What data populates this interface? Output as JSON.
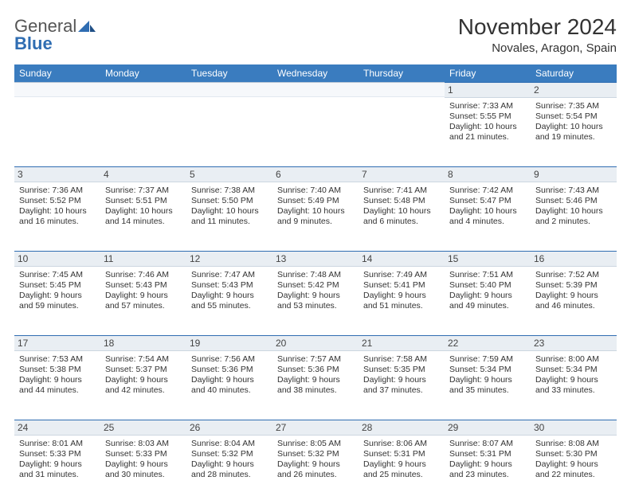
{
  "logo": {
    "word1": "General",
    "word2": "Blue"
  },
  "title": "November 2024",
  "location": "Novales, Aragon, Spain",
  "daysOfWeek": [
    "Sunday",
    "Monday",
    "Tuesday",
    "Wednesday",
    "Thursday",
    "Friday",
    "Saturday"
  ],
  "colors": {
    "header_bg": "#3a7cbf",
    "daynum_bg": "#e9eef3",
    "daynum_border_top": "#2f6db2"
  },
  "weeks": [
    [
      null,
      null,
      null,
      null,
      null,
      {
        "n": "1",
        "sunrise": "Sunrise: 7:33 AM",
        "sunset": "Sunset: 5:55 PM",
        "d1": "Daylight: 10 hours",
        "d2": "and 21 minutes."
      },
      {
        "n": "2",
        "sunrise": "Sunrise: 7:35 AM",
        "sunset": "Sunset: 5:54 PM",
        "d1": "Daylight: 10 hours",
        "d2": "and 19 minutes."
      }
    ],
    [
      {
        "n": "3",
        "sunrise": "Sunrise: 7:36 AM",
        "sunset": "Sunset: 5:52 PM",
        "d1": "Daylight: 10 hours",
        "d2": "and 16 minutes."
      },
      {
        "n": "4",
        "sunrise": "Sunrise: 7:37 AM",
        "sunset": "Sunset: 5:51 PM",
        "d1": "Daylight: 10 hours",
        "d2": "and 14 minutes."
      },
      {
        "n": "5",
        "sunrise": "Sunrise: 7:38 AM",
        "sunset": "Sunset: 5:50 PM",
        "d1": "Daylight: 10 hours",
        "d2": "and 11 minutes."
      },
      {
        "n": "6",
        "sunrise": "Sunrise: 7:40 AM",
        "sunset": "Sunset: 5:49 PM",
        "d1": "Daylight: 10 hours",
        "d2": "and 9 minutes."
      },
      {
        "n": "7",
        "sunrise": "Sunrise: 7:41 AM",
        "sunset": "Sunset: 5:48 PM",
        "d1": "Daylight: 10 hours",
        "d2": "and 6 minutes."
      },
      {
        "n": "8",
        "sunrise": "Sunrise: 7:42 AM",
        "sunset": "Sunset: 5:47 PM",
        "d1": "Daylight: 10 hours",
        "d2": "and 4 minutes."
      },
      {
        "n": "9",
        "sunrise": "Sunrise: 7:43 AM",
        "sunset": "Sunset: 5:46 PM",
        "d1": "Daylight: 10 hours",
        "d2": "and 2 minutes."
      }
    ],
    [
      {
        "n": "10",
        "sunrise": "Sunrise: 7:45 AM",
        "sunset": "Sunset: 5:45 PM",
        "d1": "Daylight: 9 hours",
        "d2": "and 59 minutes."
      },
      {
        "n": "11",
        "sunrise": "Sunrise: 7:46 AM",
        "sunset": "Sunset: 5:43 PM",
        "d1": "Daylight: 9 hours",
        "d2": "and 57 minutes."
      },
      {
        "n": "12",
        "sunrise": "Sunrise: 7:47 AM",
        "sunset": "Sunset: 5:43 PM",
        "d1": "Daylight: 9 hours",
        "d2": "and 55 minutes."
      },
      {
        "n": "13",
        "sunrise": "Sunrise: 7:48 AM",
        "sunset": "Sunset: 5:42 PM",
        "d1": "Daylight: 9 hours",
        "d2": "and 53 minutes."
      },
      {
        "n": "14",
        "sunrise": "Sunrise: 7:49 AM",
        "sunset": "Sunset: 5:41 PM",
        "d1": "Daylight: 9 hours",
        "d2": "and 51 minutes."
      },
      {
        "n": "15",
        "sunrise": "Sunrise: 7:51 AM",
        "sunset": "Sunset: 5:40 PM",
        "d1": "Daylight: 9 hours",
        "d2": "and 49 minutes."
      },
      {
        "n": "16",
        "sunrise": "Sunrise: 7:52 AM",
        "sunset": "Sunset: 5:39 PM",
        "d1": "Daylight: 9 hours",
        "d2": "and 46 minutes."
      }
    ],
    [
      {
        "n": "17",
        "sunrise": "Sunrise: 7:53 AM",
        "sunset": "Sunset: 5:38 PM",
        "d1": "Daylight: 9 hours",
        "d2": "and 44 minutes."
      },
      {
        "n": "18",
        "sunrise": "Sunrise: 7:54 AM",
        "sunset": "Sunset: 5:37 PM",
        "d1": "Daylight: 9 hours",
        "d2": "and 42 minutes."
      },
      {
        "n": "19",
        "sunrise": "Sunrise: 7:56 AM",
        "sunset": "Sunset: 5:36 PM",
        "d1": "Daylight: 9 hours",
        "d2": "and 40 minutes."
      },
      {
        "n": "20",
        "sunrise": "Sunrise: 7:57 AM",
        "sunset": "Sunset: 5:36 PM",
        "d1": "Daylight: 9 hours",
        "d2": "and 38 minutes."
      },
      {
        "n": "21",
        "sunrise": "Sunrise: 7:58 AM",
        "sunset": "Sunset: 5:35 PM",
        "d1": "Daylight: 9 hours",
        "d2": "and 37 minutes."
      },
      {
        "n": "22",
        "sunrise": "Sunrise: 7:59 AM",
        "sunset": "Sunset: 5:34 PM",
        "d1": "Daylight: 9 hours",
        "d2": "and 35 minutes."
      },
      {
        "n": "23",
        "sunrise": "Sunrise: 8:00 AM",
        "sunset": "Sunset: 5:34 PM",
        "d1": "Daylight: 9 hours",
        "d2": "and 33 minutes."
      }
    ],
    [
      {
        "n": "24",
        "sunrise": "Sunrise: 8:01 AM",
        "sunset": "Sunset: 5:33 PM",
        "d1": "Daylight: 9 hours",
        "d2": "and 31 minutes."
      },
      {
        "n": "25",
        "sunrise": "Sunrise: 8:03 AM",
        "sunset": "Sunset: 5:33 PM",
        "d1": "Daylight: 9 hours",
        "d2": "and 30 minutes."
      },
      {
        "n": "26",
        "sunrise": "Sunrise: 8:04 AM",
        "sunset": "Sunset: 5:32 PM",
        "d1": "Daylight: 9 hours",
        "d2": "and 28 minutes."
      },
      {
        "n": "27",
        "sunrise": "Sunrise: 8:05 AM",
        "sunset": "Sunset: 5:32 PM",
        "d1": "Daylight: 9 hours",
        "d2": "and 26 minutes."
      },
      {
        "n": "28",
        "sunrise": "Sunrise: 8:06 AM",
        "sunset": "Sunset: 5:31 PM",
        "d1": "Daylight: 9 hours",
        "d2": "and 25 minutes."
      },
      {
        "n": "29",
        "sunrise": "Sunrise: 8:07 AM",
        "sunset": "Sunset: 5:31 PM",
        "d1": "Daylight: 9 hours",
        "d2": "and 23 minutes."
      },
      {
        "n": "30",
        "sunrise": "Sunrise: 8:08 AM",
        "sunset": "Sunset: 5:30 PM",
        "d1": "Daylight: 9 hours",
        "d2": "and 22 minutes."
      }
    ]
  ]
}
